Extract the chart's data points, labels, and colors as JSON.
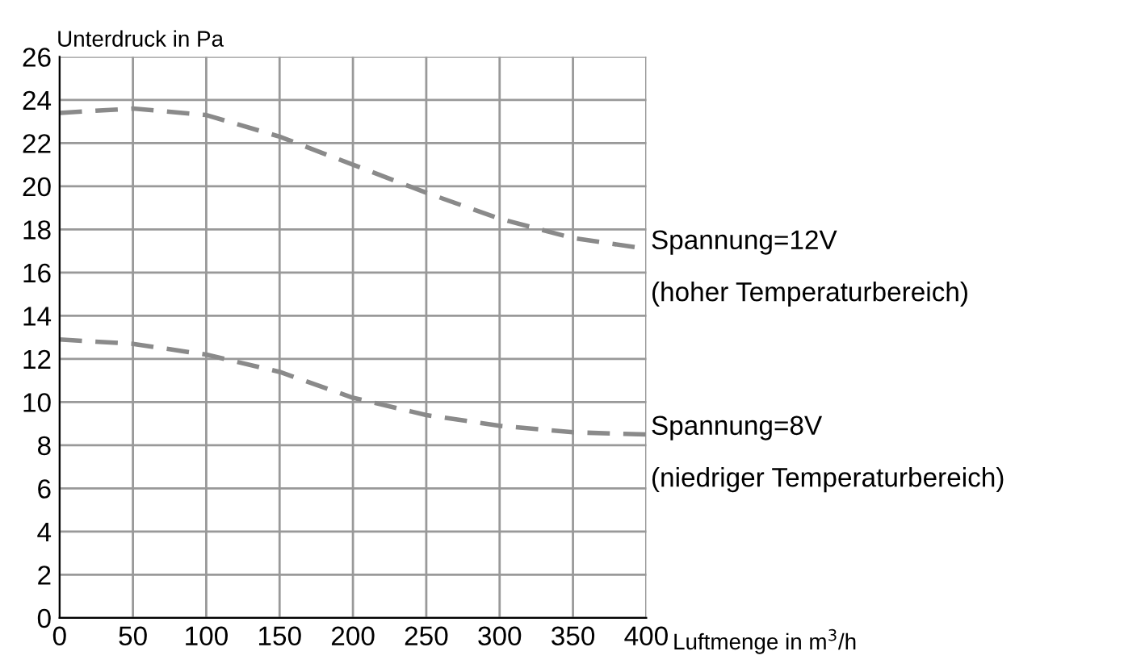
{
  "chart_data": {
    "type": "line",
    "xlabel": "Luftmenge in m$^{3}$/h",
    "ylabel": "Unterdruck in Pa",
    "x": [
      0,
      50,
      100,
      150,
      200,
      250,
      300,
      350,
      400
    ],
    "series": [
      {
        "color": "#8a8a8a",
        "values": [
          23.4,
          23.6,
          23.3,
          22.3,
          21.0,
          19.7,
          18.5,
          17.6,
          17.1
        ]
      },
      {
        "color": "#8a8a8a",
        "values": [
          12.9,
          12.7,
          12.2,
          11.4,
          10.2,
          9.4,
          8.9,
          8.6,
          8.5
        ]
      }
    ],
    "xlim": [
      0,
      400
    ],
    "xticks": [
      0,
      50,
      100,
      150,
      200,
      250,
      300,
      350,
      400
    ],
    "ylim": [
      0,
      26
    ],
    "yticks": [
      0,
      2,
      4,
      6,
      8,
      10,
      12,
      14,
      16,
      18,
      20,
      22,
      24,
      26
    ],
    "grid": true,
    "line_style": "dashed",
    "marker": "none",
    "annotations": [
      {
        "text": "Spannung=12V",
        "x": 400,
        "y": 17.1
      },
      "(hoher Temperaturbereich)",
      {
        "text": "Spannung=8V",
        "x": 400,
        "y": 8.5
      },
      "(niedriger Temperaturbereich)"
    ]
  }
}
